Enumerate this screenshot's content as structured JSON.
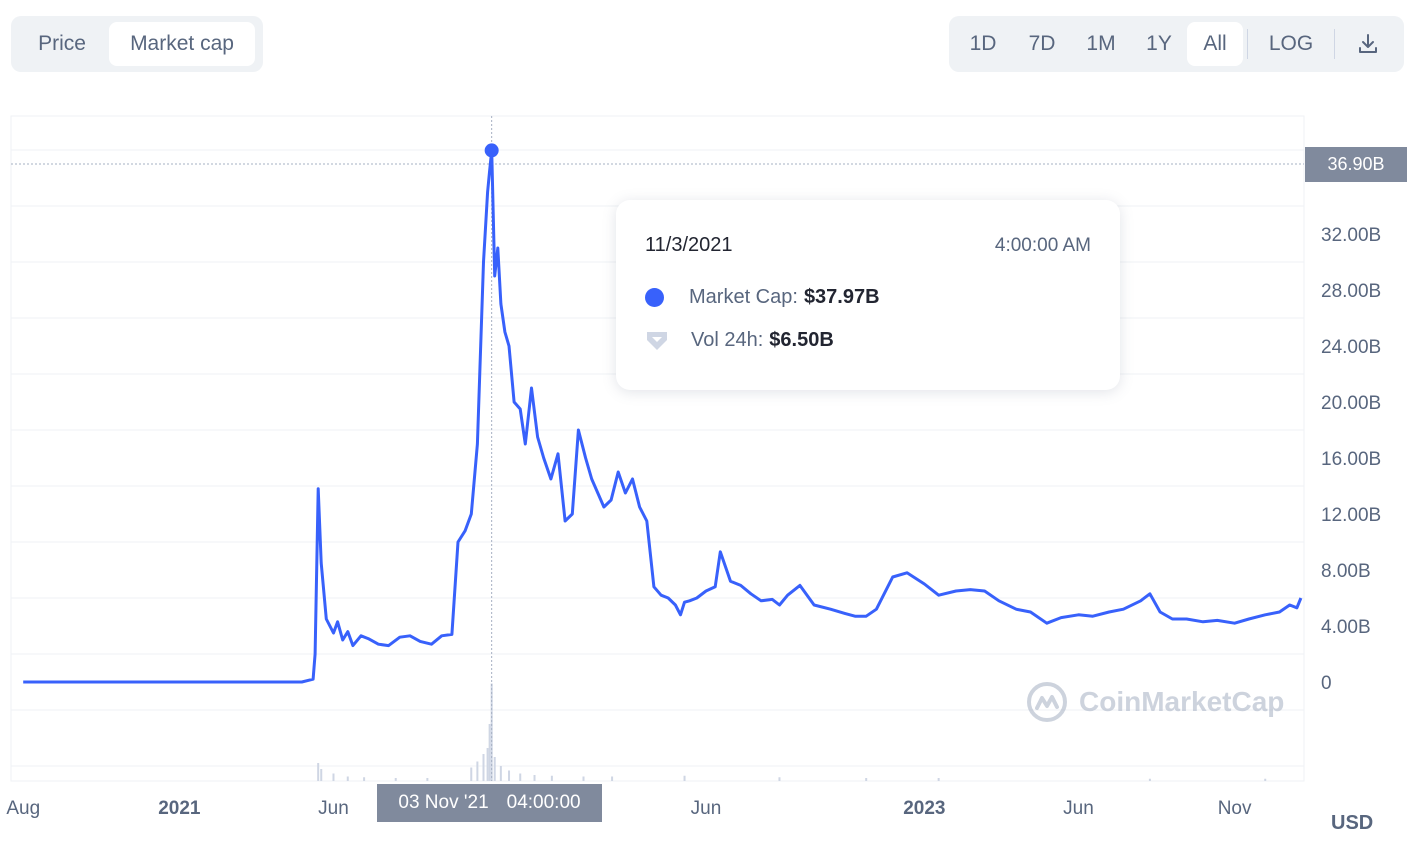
{
  "tabs_left": {
    "price_label": "Price",
    "market_cap_label": "Market cap"
  },
  "tabs_right": {
    "ranges": [
      "1D",
      "7D",
      "1M",
      "1Y",
      "All"
    ],
    "active_range": "All",
    "log_label": "LOG",
    "download_icon": "download-icon"
  },
  "tooltip": {
    "date": "11/3/2021",
    "time": "4:00:00 AM",
    "market_cap_label": "Market Cap:",
    "market_cap_value": "$37.97B",
    "volume_label": "Vol 24h:",
    "volume_value": "$6.50B",
    "market_cap_icon": "dot-icon",
    "volume_icon": "shield-icon"
  },
  "crosshair": {
    "x_label": "03 Nov '21",
    "x_time": "04:00:00",
    "y_label": "36.90B"
  },
  "currency_label": "USD",
  "watermark": {
    "text": "CoinMarketCap",
    "icon": "coinmarketcap-logo-icon"
  },
  "colors": {
    "line": "#3861fb",
    "axis_text": "#58667e",
    "grid": "#eff2f5",
    "volume": "#cfd6e4",
    "badge": "#808a9d"
  },
  "chart_data": {
    "type": "line",
    "series": [
      {
        "name": "Market Cap",
        "unit": "B USD",
        "x": [
          "2020-08-01",
          "2020-10-01",
          "2021-01-01",
          "2021-03-01",
          "2021-05-01",
          "2021-05-12",
          "2021-05-14",
          "2021-05-17",
          "2021-05-20",
          "2021-05-25",
          "2021-06-01",
          "2021-06-05",
          "2021-06-10",
          "2021-06-15",
          "2021-06-20",
          "2021-06-28",
          "2021-07-05",
          "2021-07-15",
          "2021-07-25",
          "2021-08-05",
          "2021-08-15",
          "2021-08-25",
          "2021-09-05",
          "2021-09-15",
          "2021-09-25",
          "2021-10-01",
          "2021-10-08",
          "2021-10-14",
          "2021-10-20",
          "2021-10-26",
          "2021-10-30",
          "2021-11-01",
          "2021-11-03",
          "2021-11-04",
          "2021-11-06",
          "2021-11-09",
          "2021-11-12",
          "2021-11-16",
          "2021-11-20",
          "2021-11-25",
          "2021-12-01",
          "2021-12-06",
          "2021-12-12",
          "2021-12-18",
          "2021-12-24",
          "2021-12-31",
          "2022-01-07",
          "2022-01-14",
          "2022-01-21",
          "2022-01-27",
          "2022-02-03",
          "2022-02-09",
          "2022-02-15",
          "2022-02-21",
          "2022-02-28",
          "2022-03-07",
          "2022-03-14",
          "2022-03-21",
          "2022-03-28",
          "2022-04-04",
          "2022-04-11",
          "2022-04-18",
          "2022-04-25",
          "2022-05-02",
          "2022-05-07",
          "2022-05-11",
          "2022-05-16",
          "2022-05-23",
          "2022-06-01",
          "2022-06-10",
          "2022-06-15",
          "2022-06-25",
          "2022-07-05",
          "2022-07-15",
          "2022-07-25",
          "2022-08-05",
          "2022-08-12",
          "2022-08-20",
          "2022-09-01",
          "2022-09-15",
          "2022-10-01",
          "2022-10-15",
          "2022-10-25",
          "2022-11-05",
          "2022-11-15",
          "2022-12-01",
          "2022-12-15",
          "2023-01-01",
          "2023-01-15",
          "2023-02-01",
          "2023-02-15",
          "2023-03-01",
          "2023-03-15",
          "2023-04-01",
          "2023-04-15",
          "2023-05-01",
          "2023-05-15",
          "2023-06-01",
          "2023-06-15",
          "2023-07-01",
          "2023-07-15",
          "2023-08-01",
          "2023-08-10",
          "2023-08-20",
          "2023-09-01",
          "2023-09-15",
          "2023-10-01",
          "2023-10-15",
          "2023-11-01",
          "2023-11-15",
          "2023-12-01",
          "2023-12-15",
          "2023-12-25",
          "2024-01-01",
          "2024-01-05"
        ],
        "values": [
          0,
          0,
          0,
          0,
          0,
          0.2,
          2.0,
          13.8,
          8.5,
          4.5,
          3.5,
          4.3,
          3.0,
          3.6,
          2.6,
          3.3,
          3.1,
          2.7,
          2.6,
          3.2,
          3.3,
          2.9,
          2.7,
          3.3,
          3.4,
          10.0,
          10.8,
          12.0,
          17.0,
          30.0,
          35.0,
          36.5,
          37.97,
          35.0,
          29.0,
          31.0,
          27.0,
          25.0,
          24.0,
          20.0,
          19.5,
          17.0,
          21.0,
          17.5,
          16.0,
          14.5,
          16.3,
          11.5,
          12.0,
          18.0,
          16.0,
          14.5,
          13.5,
          12.5,
          13.0,
          15.0,
          13.5,
          14.5,
          12.5,
          11.5,
          6.8,
          6.2,
          6.0,
          5.5,
          4.8,
          5.7,
          5.8,
          6.0,
          6.5,
          6.8,
          9.3,
          7.2,
          6.9,
          6.3,
          5.8,
          5.9,
          5.5,
          6.2,
          6.9,
          5.5,
          5.2,
          4.9,
          4.7,
          4.7,
          5.2,
          7.5,
          7.8,
          7.0,
          6.2,
          6.5,
          6.6,
          6.5,
          5.8,
          5.2,
          5.0,
          4.2,
          4.6,
          4.8,
          4.7,
          5.0,
          5.2,
          5.8,
          6.3,
          5.0,
          4.5,
          4.5,
          4.3,
          4.4,
          4.2,
          4.5,
          4.8,
          5.0,
          5.5,
          5.3,
          6.0
        ]
      }
    ],
    "volume": {
      "unit": "B USD",
      "x": [
        "2021-05-17",
        "2021-05-20",
        "2021-06-01",
        "2021-06-15",
        "2021-07-01",
        "2021-08-01",
        "2021-09-01",
        "2021-10-14",
        "2021-10-20",
        "2021-10-26",
        "2021-10-30",
        "2021-11-01",
        "2021-11-03",
        "2021-11-06",
        "2021-11-12",
        "2021-11-20",
        "2021-12-01",
        "2021-12-15",
        "2022-01-01",
        "2022-02-01",
        "2022-03-01",
        "2022-05-11",
        "2022-08-12",
        "2022-11-05",
        "2023-01-15",
        "2023-08-10",
        "2023-12-01"
      ],
      "values": [
        1.2,
        0.8,
        0.5,
        0.3,
        0.25,
        0.2,
        0.2,
        0.9,
        1.3,
        1.8,
        2.2,
        3.8,
        6.5,
        1.6,
        1.0,
        0.7,
        0.5,
        0.4,
        0.35,
        0.3,
        0.3,
        0.35,
        0.25,
        0.2,
        0.2,
        0.15,
        0.15
      ]
    },
    "ylim": [
      -6,
      40
    ],
    "yticks": [
      "4.00B",
      "8.00B",
      "12.00B",
      "16.00B",
      "20.00B",
      "24.00B",
      "28.00B",
      "32.00B"
    ],
    "yzero_label": "0",
    "xlim": [
      "2020-07-20",
      "2024-01-08"
    ],
    "xticks": [
      {
        "label": "Aug",
        "date": "2020-08-01",
        "bold": false
      },
      {
        "label": "2021",
        "date": "2021-01-01",
        "bold": true
      },
      {
        "label": "Jun",
        "date": "2021-06-01",
        "bold": false
      },
      {
        "label": "Jun",
        "date": "2022-06-01",
        "bold": false
      },
      {
        "label": "2023",
        "date": "2023-01-01",
        "bold": true
      },
      {
        "label": "Jun",
        "date": "2023-06-01",
        "bold": false
      },
      {
        "label": "Nov",
        "date": "2023-11-01",
        "bold": false
      }
    ],
    "highlight": {
      "date": "2021-11-03",
      "value": 37.97
    },
    "grid": true
  }
}
